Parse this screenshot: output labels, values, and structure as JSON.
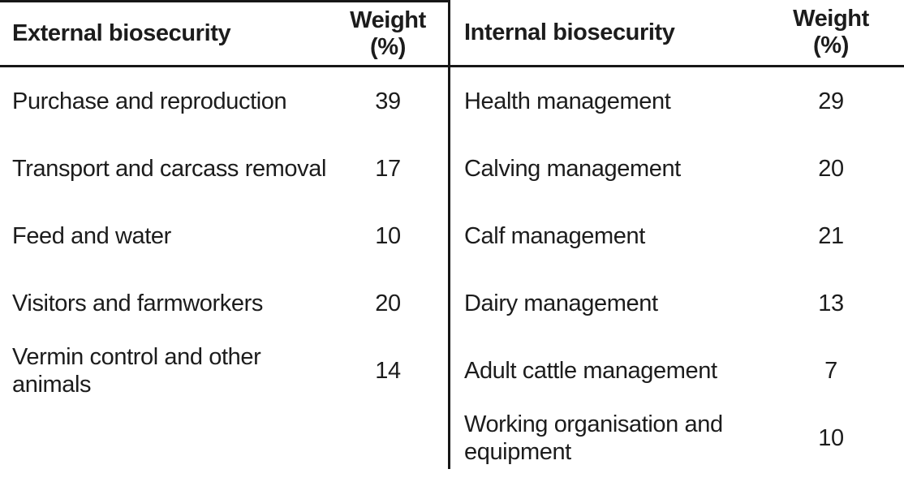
{
  "colors": {
    "background": "#ffffff",
    "text": "#1c1c1c",
    "rule": "#171717"
  },
  "tables": [
    {
      "header": {
        "category": "External biosecurity",
        "weight": "Weight (%)"
      },
      "rows": [
        {
          "label": "Purchase and reproduction",
          "weight": "39"
        },
        {
          "label": "Transport and carcass removal",
          "weight": "17"
        },
        {
          "label": "Feed and water",
          "weight": "10"
        },
        {
          "label": "Visitors and farmworkers",
          "weight": "20"
        },
        {
          "label": "Vermin control and other animals",
          "weight": "14"
        }
      ]
    },
    {
      "header": {
        "category": "Internal biosecurity",
        "weight": "Weight (%)"
      },
      "rows": [
        {
          "label": "Health management",
          "weight": "29"
        },
        {
          "label": "Calving management",
          "weight": "20"
        },
        {
          "label": "Calf management",
          "weight": "21"
        },
        {
          "label": "Dairy management",
          "weight": "13"
        },
        {
          "label": "Adult cattle management",
          "weight": "7"
        },
        {
          "label": "Working organisation and equipment",
          "weight": "10"
        }
      ]
    }
  ]
}
